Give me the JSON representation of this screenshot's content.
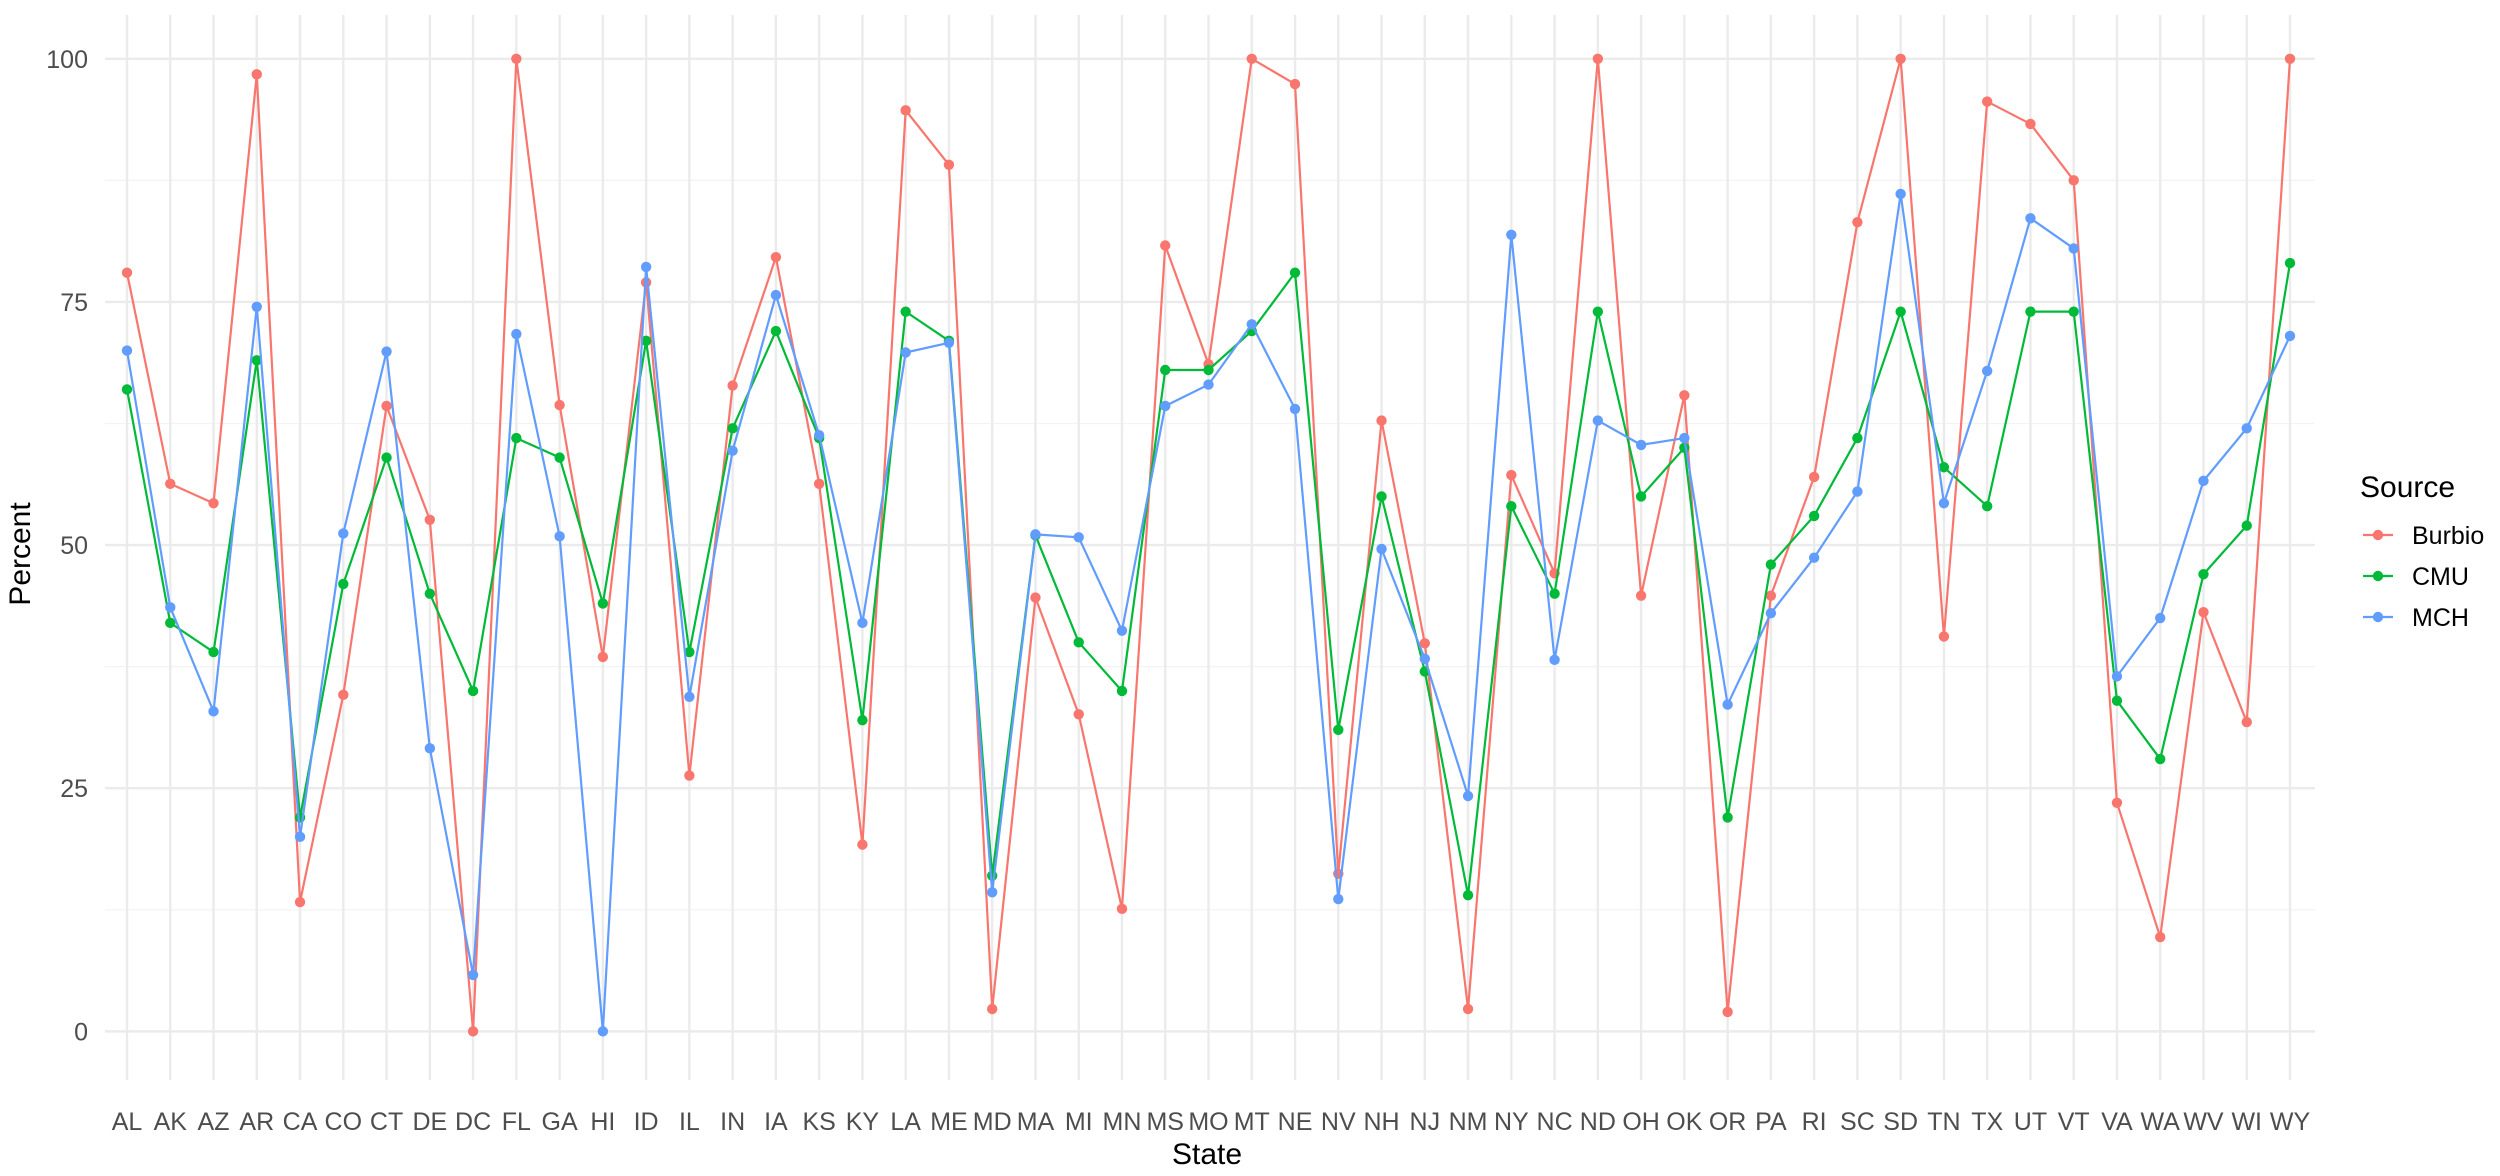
{
  "chart_data": {
    "type": "line",
    "xlabel": "State",
    "ylabel": "Percent",
    "ylim": [
      -5,
      104.5
    ],
    "yticks": [
      0,
      25,
      50,
      75,
      100
    ],
    "grid": true,
    "legend_title": "Source",
    "legend_position": "right",
    "categories": [
      "AL",
      "AK",
      "AZ",
      "AR",
      "CA",
      "CO",
      "CT",
      "DE",
      "DC",
      "FL",
      "GA",
      "HI",
      "ID",
      "IL",
      "IN",
      "IA",
      "KS",
      "KY",
      "LA",
      "ME",
      "MD",
      "MA",
      "MI",
      "MN",
      "MS",
      "MO",
      "MT",
      "NE",
      "NV",
      "NH",
      "NJ",
      "NM",
      "NY",
      "NC",
      "ND",
      "OH",
      "OK",
      "OR",
      "PA",
      "RI",
      "SC",
      "SD",
      "TN",
      "TX",
      "UT",
      "VT",
      "VA",
      "WA",
      "WV",
      "WI",
      "WY"
    ],
    "series": [
      {
        "name": "Burbio",
        "color": "#F8766D",
        "values": [
          78,
          56.3,
          54.3,
          98.4,
          13.3,
          34.6,
          64.3,
          52.6,
          0,
          100,
          64.4,
          38.5,
          77,
          26.3,
          66.4,
          79.6,
          56.3,
          19.2,
          94.7,
          89.1,
          2.3,
          44.6,
          32.6,
          12.6,
          80.8,
          68.6,
          100,
          97.4,
          16.2,
          62.8,
          39.9,
          2.3,
          57.2,
          47.1,
          100,
          44.8,
          65.4,
          2,
          44.8,
          57,
          83.2,
          100,
          40.6,
          95.6,
          93.3,
          87.5,
          23.5,
          9.7,
          43.1,
          31.8,
          100
        ]
      },
      {
        "name": "CMU",
        "color": "#00BA38",
        "values": [
          66,
          42,
          39,
          69,
          22,
          46,
          59,
          45,
          35,
          61,
          59,
          44,
          71,
          39,
          62,
          72,
          61,
          32,
          74,
          71,
          16,
          51,
          40,
          35,
          68,
          68,
          72,
          78,
          31,
          55,
          37,
          14,
          54,
          45,
          74,
          55,
          60,
          22,
          48,
          53,
          61,
          74,
          58,
          54,
          74,
          74,
          34,
          28,
          47,
          52,
          79
        ]
      },
      {
        "name": "MCH",
        "color": "#619CFF",
        "values": [
          70,
          43.6,
          32.9,
          74.5,
          20,
          51.2,
          69.9,
          29.1,
          5.8,
          71.7,
          50.9,
          0,
          78.6,
          34.4,
          59.7,
          75.7,
          61.3,
          42,
          69.8,
          70.8,
          14.3,
          51.1,
          50.8,
          41.2,
          64.3,
          66.5,
          72.7,
          64,
          13.6,
          49.6,
          38.3,
          24.2,
          81.9,
          38.2,
          62.8,
          60.3,
          61,
          33.6,
          43,
          48.7,
          55.5,
          86.1,
          54.3,
          67.9,
          83.6,
          80.5,
          36.5,
          42.5,
          56.6,
          62,
          71.5
        ]
      }
    ]
  }
}
